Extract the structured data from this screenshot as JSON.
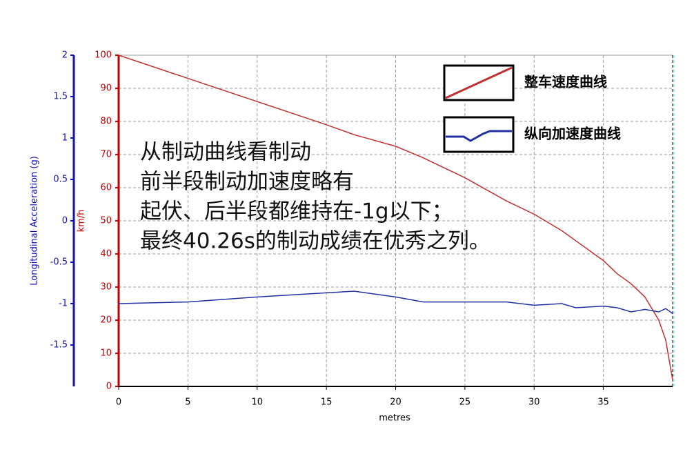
{
  "chart_data": {
    "type": "line",
    "x_label": "metres",
    "y_label": "km/h",
    "y2_label": "Longitudinal Acceleration (g)",
    "x": [
      0,
      5,
      10,
      15,
      17,
      20,
      22,
      25,
      28,
      30,
      32,
      33,
      35,
      36,
      37,
      38,
      39,
      39.5,
      40
    ],
    "series": [
      {
        "name": "整车速度曲线",
        "color": "#c03030",
        "axis": "y",
        "values": [
          100,
          93,
          86,
          79,
          76,
          72.5,
          69,
          63,
          56,
          52,
          47,
          44,
          38,
          34,
          31,
          27,
          20,
          14,
          2
        ]
      },
      {
        "name": "纵向加速度曲线",
        "color": "#2030a0",
        "axis": "y2",
        "values": [
          -1.0,
          -0.98,
          -0.92,
          -0.87,
          -0.85,
          -0.92,
          -0.98,
          -0.98,
          -0.98,
          -1.02,
          -1.0,
          -1.05,
          -1.03,
          -1.05,
          -1.1,
          -1.07,
          -1.1,
          -1.06,
          -1.12
        ]
      }
    ],
    "xlim": [
      0,
      40
    ],
    "xticks": [
      0,
      5,
      10,
      15,
      20,
      25,
      30,
      35
    ],
    "ylim": [
      0,
      100
    ],
    "yticks": [
      0,
      10,
      20,
      30,
      40,
      50,
      60,
      70,
      80,
      90,
      100
    ],
    "y2lim": [
      -2,
      2
    ],
    "y2ticks": [
      -1.5,
      -1,
      -0.5,
      0,
      0.5,
      1,
      1.5,
      2
    ],
    "grid": true,
    "legend": "top-right",
    "annotation": [
      "从制动曲线看制动",
      "前半段制动加速度略有",
      "起伏、后半段都维持在-1g以下；",
      "最终40.26s的制动成绩在优秀之列。"
    ]
  }
}
